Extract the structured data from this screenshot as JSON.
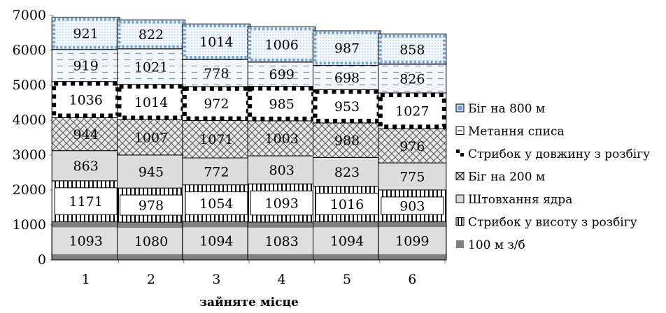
{
  "chart_data": {
    "type": "bar",
    "stacked": true,
    "categories": [
      "1",
      "2",
      "3",
      "4",
      "5",
      "6"
    ],
    "xlabel": "зайняте місце",
    "ylabel": "",
    "ylim": [
      0,
      7000
    ],
    "yticks": [
      0,
      1000,
      2000,
      3000,
      4000,
      5000,
      6000,
      7000
    ],
    "legend_position": "right",
    "grid": false,
    "series": [
      {
        "name": "100 м з/б",
        "values": [
          1093,
          1080,
          1094,
          1083,
          1094,
          1099
        ],
        "color": "#808080"
      },
      {
        "name": "Стрибок у висоту з розбігу",
        "values": [
          1171,
          978,
          1054,
          1093,
          1016,
          903
        ],
        "color": "#000000"
      },
      {
        "name": "Штовхання ядра",
        "values": [
          863,
          945,
          772,
          803,
          823,
          775
        ],
        "color": "#d9d9d9"
      },
      {
        "name": "Біг на 200 м",
        "values": [
          944,
          1007,
          1071,
          1003,
          988,
          976
        ],
        "color": "#595959"
      },
      {
        "name": "Стрибок у довжину з розбігу",
        "values": [
          1036,
          1014,
          972,
          985,
          953,
          1027
        ],
        "color": "#000000"
      },
      {
        "name": "Метання списа",
        "values": [
          919,
          1021,
          778,
          699,
          698,
          826
        ],
        "color": "#8eaac8"
      },
      {
        "name": "Біг на 800 м",
        "values": [
          921,
          822,
          1014,
          1006,
          987,
          858
        ],
        "color": "#6fa0d8"
      }
    ]
  }
}
